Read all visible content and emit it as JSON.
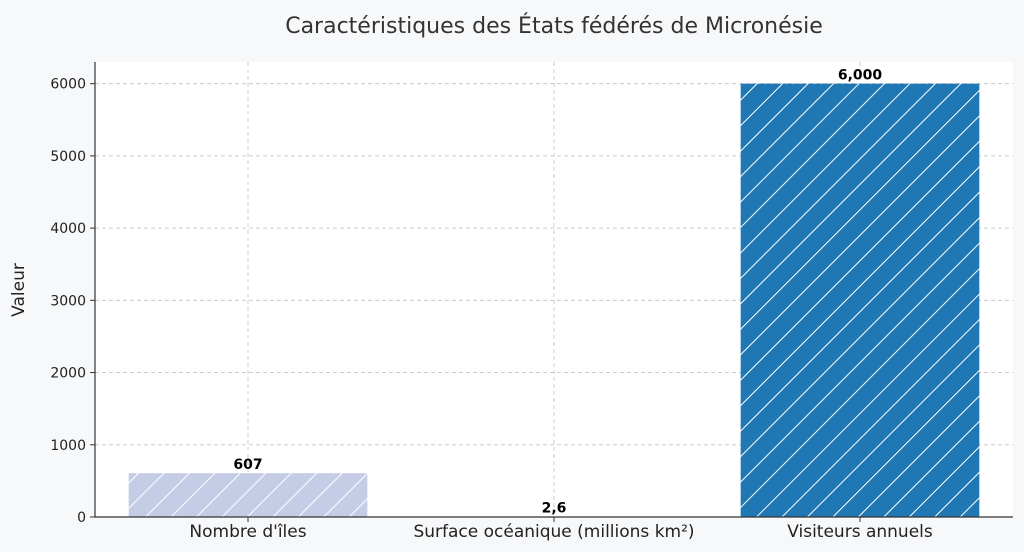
{
  "chart_data": {
    "type": "bar",
    "title": "Caractéristiques des États fédérés de Micronésie",
    "xlabel": "",
    "ylabel": "Valeur",
    "categories": [
      "Nombre d'îles",
      "Surface océanique (millions km²)",
      "Visiteurs annuels"
    ],
    "values": [
      607,
      2.6,
      6000
    ],
    "data_labels": [
      "607",
      "2,6",
      "6,000"
    ],
    "ylim": [
      0,
      6300
    ],
    "yticks": [
      0,
      1000,
      2000,
      3000,
      4000,
      5000,
      6000
    ],
    "grid": true,
    "hatch": "diagonal",
    "colors": [
      "#c5cce6",
      "#4fa3d6",
      "#1f77b4"
    ]
  }
}
